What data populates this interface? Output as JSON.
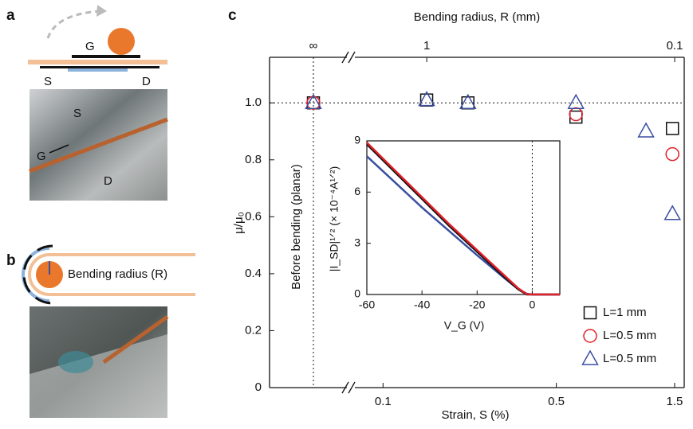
{
  "panels": {
    "a": {
      "label": "a",
      "diagram_labels": [
        "G",
        "S",
        "D"
      ],
      "photo_labels": [
        "S",
        "G",
        "D"
      ]
    },
    "b": {
      "label": "b",
      "diagram_label": "Bending radius (R)"
    },
    "c": {
      "label": "c"
    }
  },
  "chart_data": [
    {
      "type": "scatter",
      "xlabel": "Strain, S (%)",
      "ylabel": "μ/μ₀",
      "x2label": "Bending radius, R (mm)",
      "annotation": "Before bending (planar)",
      "xscale": "log",
      "x2scale": "log",
      "xlim": [
        0.077,
        1.64
      ],
      "xticks": [
        0.1,
        0.5,
        1.5
      ],
      "x2lim": [
        1.95,
        0.0915
      ],
      "x2ticks": [
        1,
        0.1
      ],
      "x2_break_label": "∞",
      "ylim": [
        0,
        1.16
      ],
      "yticks": [
        0,
        0.2,
        0.4,
        0.6,
        0.8,
        {
          "value": 1,
          "label": "1.0"
        }
      ],
      "hlines": [
        1
      ],
      "vlines": [
        0
      ],
      "legend": "lower right",
      "series": [
        {
          "name": "L=1 mm",
          "color": "#111111",
          "marker": "square",
          "x": [
            0,
            0.15,
            0.22,
            0.6,
            1.47
          ],
          "values": [
            1.0,
            1.01,
            1.0,
            0.95,
            0.91
          ]
        },
        {
          "name": "L=0.5 mm",
          "color": "#e0202a",
          "marker": "circle",
          "x": [
            0,
            0.6,
            1.47
          ],
          "values": [
            1.0,
            0.96,
            0.82
          ]
        },
        {
          "name": "L=0.5 mm",
          "color": "#3a4fa0",
          "marker": "triangle",
          "x": [
            0,
            0.15,
            0.22,
            0.6,
            1.15,
            1.47
          ],
          "values": [
            1.0,
            1.01,
            1.0,
            1.0,
            0.9,
            0.61
          ]
        }
      ]
    },
    {
      "type": "line",
      "xlabel": "V_G (V)",
      "ylabel": "|I_SD|¹ᐟ² (× 10⁻⁴A¹ᐟ²)",
      "x": [
        -60,
        -50,
        -40,
        -30,
        -20,
        -10,
        -5,
        -2,
        0,
        10
      ],
      "xlim": [
        -60,
        10
      ],
      "xticks": [
        -60,
        -40,
        -20,
        0
      ],
      "ylim": [
        0,
        9
      ],
      "yticks": [
        0,
        3,
        6,
        9
      ],
      "vlines": [
        0
      ],
      "series": [
        {
          "color": "#3a4fa0",
          "values": [
            8.1,
            6.6,
            5.1,
            3.7,
            2.3,
            0.95,
            0.3,
            0.05,
            0,
            0
          ]
        },
        {
          "color": "#111111",
          "values": [
            8.8,
            7.2,
            5.6,
            4.0,
            2.5,
            1.0,
            0.3,
            0,
            0,
            0
          ]
        },
        {
          "color": "#e0202a",
          "values": [
            8.9,
            7.3,
            5.7,
            4.1,
            2.6,
            1.1,
            0.35,
            0.02,
            0,
            0
          ]
        }
      ]
    }
  ]
}
